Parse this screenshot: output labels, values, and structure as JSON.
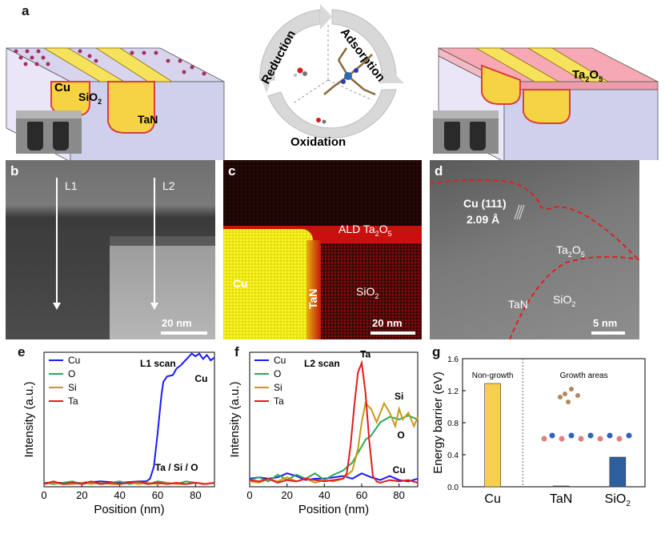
{
  "panels": {
    "a": {
      "letter": "a",
      "cycle": [
        "Reduction",
        "Adsorption",
        "Oxidation"
      ],
      "left_labels": [
        "Cu",
        "SiO",
        "TaN"
      ],
      "right_label": "Ta",
      "sub2": "2",
      "sub5": "5"
    },
    "b": {
      "letter": "b",
      "l1": "L1",
      "l2": "L2",
      "scale": "20 nm"
    },
    "c": {
      "letter": "c",
      "ald": "ALD Ta",
      "cu": "Cu",
      "tan": "TaN",
      "sio": "SiO",
      "scale": "20 nm"
    },
    "d": {
      "letter": "d",
      "cu111": "Cu (111)",
      "spacing": "2.09 Å",
      "ta2o5": "Ta",
      "tan": "TaN",
      "sio": "SiO",
      "scale": "5 nm"
    },
    "e": {
      "letter": "e"
    },
    "f": {
      "letter": "f"
    },
    "g": {
      "letter": "g"
    }
  },
  "colors": {
    "Cu": "#1a1aff",
    "O": "#2aa95a",
    "Si": "#c89a18",
    "Ta": "#e8191c",
    "bar_cu": "#f7cf4f",
    "bar_sio2": "#2d5e9e"
  },
  "chart_data": [
    {
      "id": "e",
      "type": "line",
      "title": "L1 scan",
      "xlabel": "Position (nm)",
      "ylabel": "Intensity (a.u.)",
      "xlim": [
        0,
        90
      ],
      "xticks": [
        0,
        20,
        40,
        60,
        80
      ],
      "legend": [
        "Cu",
        "O",
        "Si",
        "Ta"
      ],
      "annotations": [
        "Cu",
        "Ta / Si / O"
      ],
      "series": [
        {
          "name": "Cu",
          "x": [
            0,
            10,
            20,
            30,
            40,
            50,
            54,
            56,
            58,
            60,
            62,
            63,
            65,
            68,
            70,
            72,
            74,
            76,
            78,
            80,
            82,
            84,
            86,
            88,
            90
          ],
          "y": [
            0.03,
            0.03,
            0.03,
            0.04,
            0.03,
            0.04,
            0.04,
            0.06,
            0.15,
            0.4,
            0.68,
            0.78,
            0.82,
            0.83,
            0.88,
            0.9,
            0.93,
            0.96,
            0.99,
            0.97,
            0.99,
            0.95,
            0.98,
            0.94,
            0.96
          ]
        },
        {
          "name": "O",
          "x": [
            0,
            5,
            10,
            15,
            20,
            25,
            30,
            35,
            40,
            45,
            50,
            55,
            60,
            65,
            70,
            75,
            80,
            85,
            90
          ],
          "y": [
            0.03,
            0.02,
            0.03,
            0.04,
            0.02,
            0.03,
            0.02,
            0.03,
            0.04,
            0.02,
            0.03,
            0.02,
            0.04,
            0.03,
            0.02,
            0.04,
            0.03,
            0.02,
            0.03
          ]
        },
        {
          "name": "Si",
          "x": [
            0,
            5,
            10,
            15,
            20,
            25,
            30,
            35,
            40,
            45,
            50,
            55,
            60,
            65,
            70,
            75,
            80,
            85,
            90
          ],
          "y": [
            0.02,
            0.03,
            0.02,
            0.02,
            0.03,
            0.02,
            0.03,
            0.02,
            0.02,
            0.03,
            0.02,
            0.03,
            0.02,
            0.03,
            0.02,
            0.02,
            0.03,
            0.02,
            0.03
          ]
        },
        {
          "name": "Ta",
          "x": [
            0,
            5,
            10,
            15,
            20,
            25,
            30,
            35,
            40,
            45,
            50,
            55,
            60,
            65,
            70,
            75,
            80,
            85,
            90
          ],
          "y": [
            0.02,
            0.04,
            0.02,
            0.03,
            0.02,
            0.04,
            0.02,
            0.03,
            0.02,
            0.03,
            0.04,
            0.02,
            0.03,
            0.02,
            0.03,
            0.02,
            0.03,
            0.02,
            0.03
          ]
        }
      ]
    },
    {
      "id": "f",
      "type": "line",
      "title": "L2 scan",
      "xlabel": "Position (nm)",
      "ylabel": "Intensity (a.u.)",
      "xlim": [
        0,
        90
      ],
      "xticks": [
        0,
        20,
        40,
        60,
        80
      ],
      "legend": [
        "Cu",
        "O",
        "Si",
        "Ta"
      ],
      "annotations": [
        "Ta",
        "Si",
        "O",
        "Cu"
      ],
      "series": [
        {
          "name": "Cu",
          "x": [
            0,
            5,
            10,
            15,
            20,
            25,
            30,
            35,
            40,
            45,
            50,
            55,
            60,
            65,
            70,
            75,
            80,
            85,
            90
          ],
          "y": [
            0.06,
            0.07,
            0.06,
            0.07,
            0.1,
            0.08,
            0.05,
            0.06,
            0.06,
            0.07,
            0.08,
            0.06,
            0.1,
            0.07,
            0.05,
            0.08,
            0.05,
            0.04,
            0.06
          ]
        },
        {
          "name": "O",
          "x": [
            0,
            5,
            10,
            15,
            20,
            25,
            30,
            35,
            40,
            45,
            50,
            55,
            60,
            62,
            65,
            70,
            75,
            80,
            85,
            90
          ],
          "y": [
            0.05,
            0.07,
            0.04,
            0.09,
            0.05,
            0.09,
            0.06,
            0.1,
            0.05,
            0.09,
            0.12,
            0.18,
            0.3,
            0.35,
            0.38,
            0.48,
            0.52,
            0.5,
            0.53,
            0.5
          ]
        },
        {
          "name": "Si",
          "x": [
            0,
            5,
            10,
            15,
            20,
            25,
            30,
            35,
            40,
            45,
            50,
            55,
            58,
            60,
            62,
            65,
            68,
            70,
            72,
            75,
            78,
            80,
            82,
            85,
            88,
            90
          ],
          "y": [
            0.04,
            0.03,
            0.06,
            0.04,
            0.07,
            0.04,
            0.06,
            0.03,
            0.05,
            0.04,
            0.06,
            0.12,
            0.28,
            0.48,
            0.62,
            0.58,
            0.48,
            0.55,
            0.62,
            0.55,
            0.45,
            0.58,
            0.5,
            0.55,
            0.45,
            0.52
          ]
        },
        {
          "name": "Ta",
          "x": [
            0,
            5,
            10,
            15,
            20,
            25,
            30,
            35,
            40,
            45,
            50,
            52,
            54,
            56,
            58,
            60,
            62,
            64,
            66,
            68,
            70,
            75,
            80,
            85,
            90
          ],
          "y": [
            0.05,
            0.04,
            0.06,
            0.03,
            0.05,
            0.04,
            0.06,
            0.05,
            0.04,
            0.05,
            0.06,
            0.1,
            0.3,
            0.6,
            0.85,
            0.92,
            0.7,
            0.35,
            0.08,
            0.04,
            0.03,
            0.05,
            0.04,
            0.05,
            0.03
          ]
        }
      ]
    },
    {
      "id": "g",
      "type": "bar",
      "ylabel": "Energy barrier (eV)",
      "categories": [
        "Cu",
        "TaN",
        "SiO2"
      ],
      "values": [
        1.29,
        0.01,
        0.37
      ],
      "ylim": [
        0,
        1.6
      ],
      "yticks": [
        0.0,
        0.4,
        0.8,
        1.2,
        1.6
      ],
      "region_labels": [
        "Non-growth",
        "Growth areas"
      ]
    }
  ]
}
